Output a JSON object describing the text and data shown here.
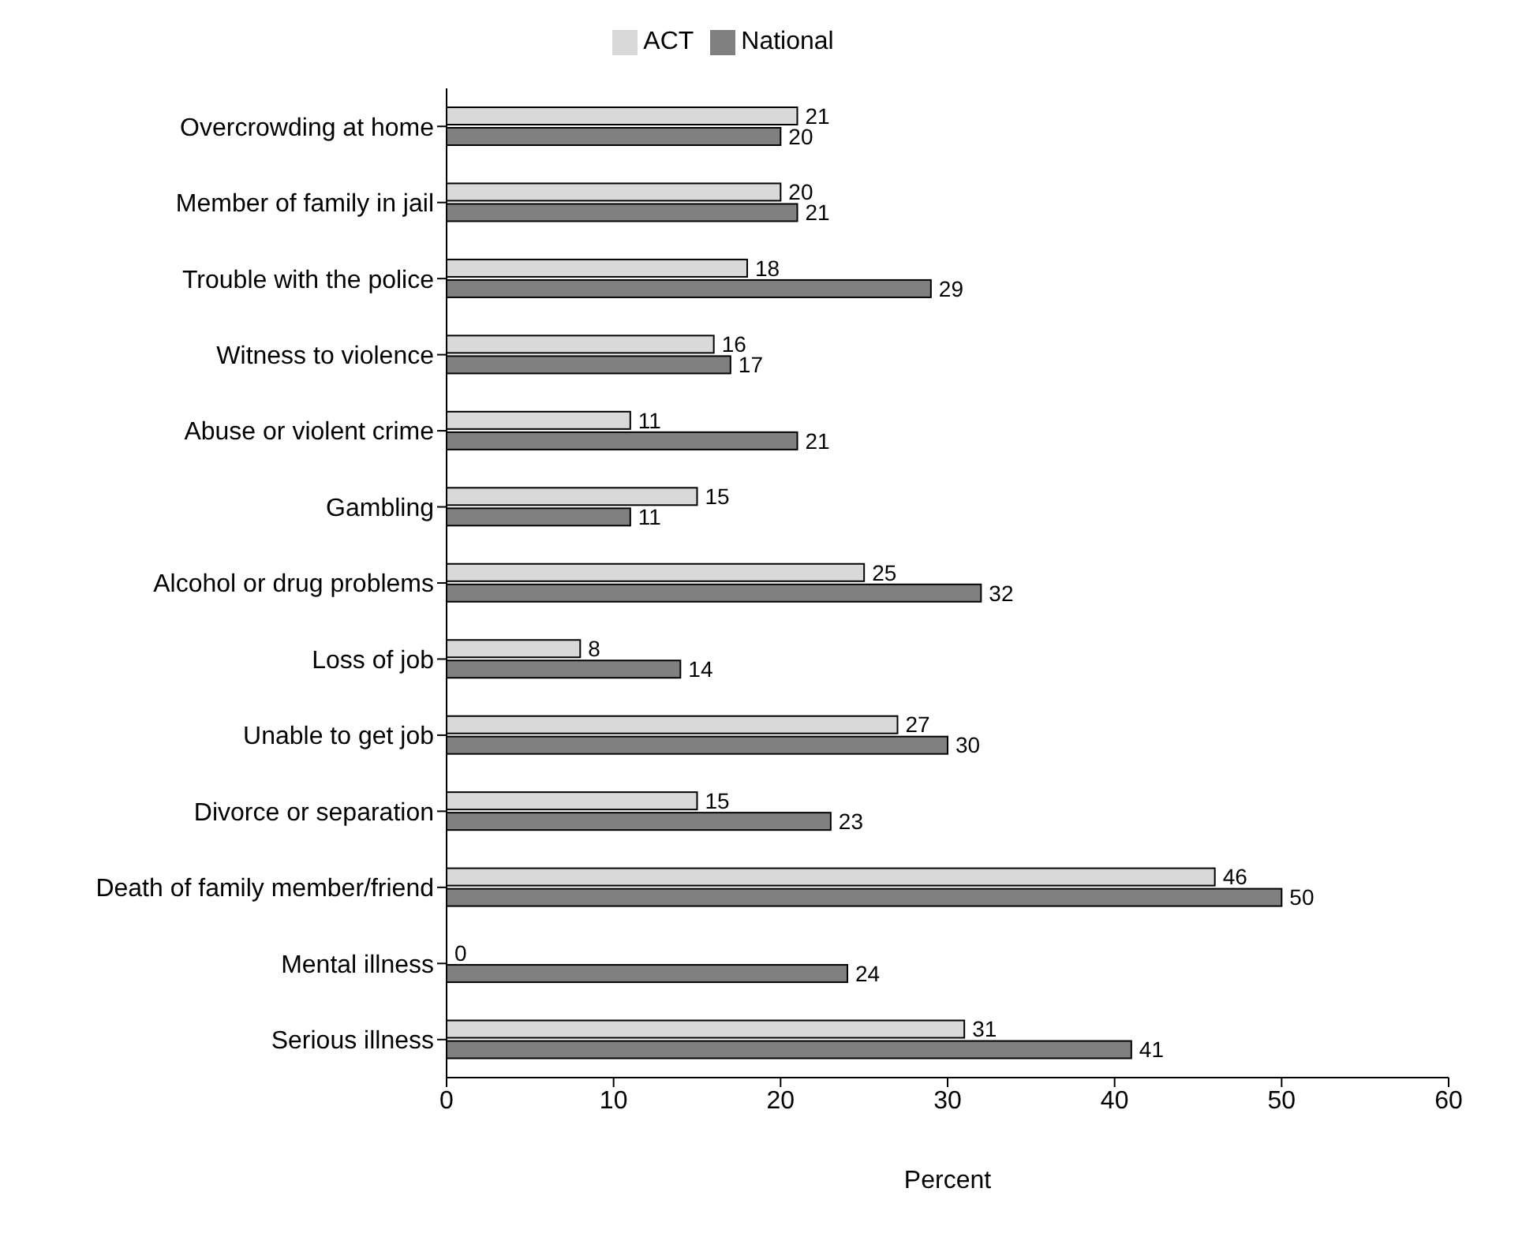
{
  "chart_data": {
    "type": "bar",
    "orientation": "horizontal",
    "xlabel": "Percent",
    "categories": [
      "Overcrowding at home",
      "Member of family in jail",
      "Trouble with the police",
      "Witness to violence",
      "Abuse or violent crime",
      "Gambling",
      "Alcohol or drug problems",
      "Loss of job",
      "Unable to get job",
      "Divorce or separation",
      "Death of family member/friend",
      "Mental illness",
      "Serious illness"
    ],
    "series": [
      {
        "name": "ACT",
        "color": "#d9d9d9",
        "values": [
          21,
          20,
          18,
          16,
          11,
          15,
          25,
          8,
          27,
          15,
          46,
          0,
          31
        ]
      },
      {
        "name": "National",
        "color": "#808080",
        "values": [
          20,
          21,
          29,
          17,
          21,
          11,
          32,
          14,
          30,
          23,
          50,
          24,
          41
        ]
      }
    ],
    "xlim": [
      0,
      60
    ],
    "xticks": [
      0,
      10,
      20,
      30,
      40,
      50,
      60
    ],
    "data_labels": true,
    "legend": "top",
    "grid": false
  }
}
